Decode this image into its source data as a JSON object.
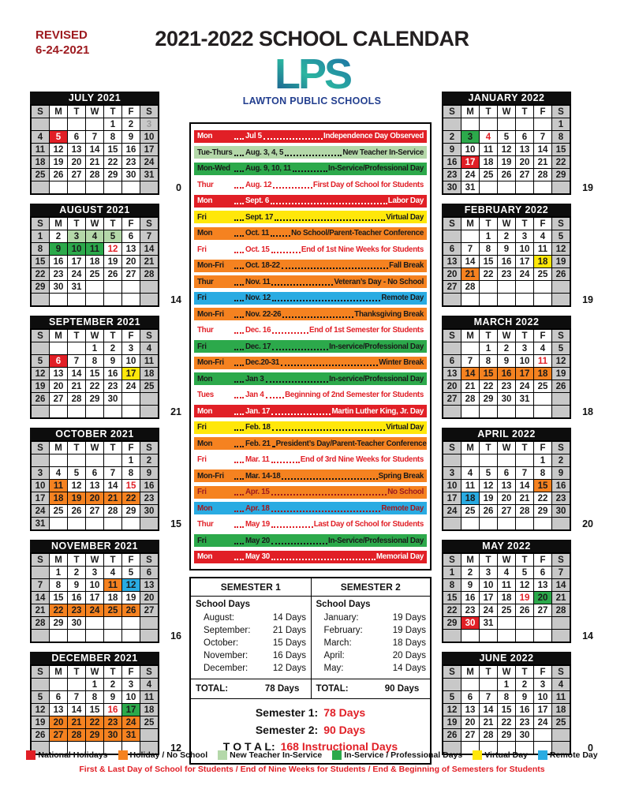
{
  "page": {
    "revised": "REVISED\n6-24-2021",
    "title": "2021-2022 SCHOOL CALENDAR",
    "logo_text": "LPS",
    "logo_subtext": "LAWTON PUBLIC SCHOOLS"
  },
  "colors": {
    "red": "#e11f26",
    "darkred": "#9e1b20",
    "orange": "#f58220",
    "ltgreen": "#b4d8a9",
    "green": "#2ca94b",
    "yellow": "#ffe70a",
    "blue": "#29abe2",
    "gray": "#c8c8c8",
    "navy": "#233f8f"
  },
  "day_headers": [
    "S",
    "M",
    "T",
    "W",
    "T",
    "F",
    "S"
  ],
  "months": [
    {
      "name": "JULY 2021",
      "count": "0",
      "marks": {
        "5": "red",
        "3": "graytext"
      },
      "weeks": [
        [
          "",
          "",
          "",
          "",
          "1",
          "2",
          "3"
        ],
        [
          "4",
          "5",
          "6",
          "7",
          "8",
          "9",
          "10"
        ],
        [
          "11",
          "12",
          "13",
          "14",
          "15",
          "16",
          "17"
        ],
        [
          "18",
          "19",
          "20",
          "21",
          "22",
          "23",
          "24"
        ],
        [
          "25",
          "26",
          "27",
          "28",
          "29",
          "30",
          "31"
        ],
        [
          "",
          "",
          "",
          "",
          "",
          "",
          ""
        ]
      ]
    },
    {
      "name": "AUGUST 2021",
      "count": "14",
      "marks": {
        "3": "ltgreen",
        "4": "ltgreen",
        "5": "ltgreen",
        "9": "green",
        "10": "green",
        "11": "green",
        "12": "redtext"
      },
      "weeks": [
        [
          "1",
          "2",
          "3",
          "4",
          "5",
          "6",
          "7"
        ],
        [
          "8",
          "9",
          "10",
          "11",
          "12",
          "13",
          "14"
        ],
        [
          "15",
          "16",
          "17",
          "18",
          "19",
          "20",
          "21"
        ],
        [
          "22",
          "23",
          "24",
          "25",
          "26",
          "27",
          "28"
        ],
        [
          "29",
          "30",
          "31",
          "",
          "",
          "",
          ""
        ],
        [
          "",
          "",
          "",
          "",
          "",
          "",
          ""
        ]
      ]
    },
    {
      "name": "SEPTEMBER 2021",
      "count": "21",
      "marks": {
        "6": "red",
        "17": "yellow"
      },
      "weeks": [
        [
          "",
          "",
          "",
          "1",
          "2",
          "3",
          "4"
        ],
        [
          "5",
          "6",
          "7",
          "8",
          "9",
          "10",
          "11"
        ],
        [
          "12",
          "13",
          "14",
          "15",
          "16",
          "17",
          "18"
        ],
        [
          "19",
          "20",
          "21",
          "22",
          "23",
          "24",
          "25"
        ],
        [
          "26",
          "27",
          "28",
          "29",
          "30",
          "",
          ""
        ],
        [
          "",
          "",
          "",
          "",
          "",
          "",
          ""
        ]
      ]
    },
    {
      "name": "OCTOBER 2021",
      "count": "15",
      "marks": {
        "11": "orange",
        "15": "redtext",
        "18": "orange",
        "19": "orange",
        "20": "orange",
        "21": "orange",
        "22": "orange"
      },
      "weeks": [
        [
          "",
          "",
          "",
          "",
          "",
          "1",
          "2"
        ],
        [
          "3",
          "4",
          "5",
          "6",
          "7",
          "8",
          "9"
        ],
        [
          "10",
          "11",
          "12",
          "13",
          "14",
          "15",
          "16"
        ],
        [
          "17",
          "18",
          "19",
          "20",
          "21",
          "22",
          "23"
        ],
        [
          "24",
          "25",
          "26",
          "27",
          "28",
          "29",
          "30"
        ],
        [
          "31",
          "",
          "",
          "",
          "",
          "",
          ""
        ]
      ]
    },
    {
      "name": "NOVEMBER 2021",
      "count": "16",
      "marks": {
        "11": "orange",
        "12": "blue",
        "22": "orange",
        "23": "orange",
        "24": "orange",
        "25": "orange",
        "26": "orange"
      },
      "weeks": [
        [
          "",
          "1",
          "2",
          "3",
          "4",
          "5",
          "6"
        ],
        [
          "7",
          "8",
          "9",
          "10",
          "11",
          "12",
          "13"
        ],
        [
          "14",
          "15",
          "16",
          "17",
          "18",
          "19",
          "20"
        ],
        [
          "21",
          "22",
          "23",
          "24",
          "25",
          "26",
          "27"
        ],
        [
          "28",
          "29",
          "30",
          "",
          "",
          "",
          ""
        ],
        [
          "",
          "",
          "",
          "",
          "",
          "",
          ""
        ]
      ]
    },
    {
      "name": "DECEMBER 2021",
      "count": "12",
      "marks": {
        "16": "redtext",
        "17": "green",
        "20": "orange",
        "21": "orange",
        "22": "orange",
        "23": "orange",
        "24": "orange",
        "27": "orange",
        "28": "orange",
        "29": "orange",
        "30": "orange",
        "31": "orange"
      },
      "weeks": [
        [
          "",
          "",
          "",
          "1",
          "2",
          "3",
          "4"
        ],
        [
          "5",
          "6",
          "7",
          "8",
          "9",
          "10",
          "11"
        ],
        [
          "12",
          "13",
          "14",
          "15",
          "16",
          "17",
          "18"
        ],
        [
          "19",
          "20",
          "21",
          "22",
          "23",
          "24",
          "25"
        ],
        [
          "26",
          "27",
          "28",
          "29",
          "30",
          "31",
          ""
        ],
        [
          "",
          "",
          "",
          "",
          "",
          "",
          ""
        ]
      ]
    },
    {
      "name": "JANUARY 2022",
      "count": "19",
      "marks": {
        "3": "green",
        "4": "redtext",
        "17": "red"
      },
      "weeks": [
        [
          "",
          "",
          "",
          "",
          "",
          "",
          "1"
        ],
        [
          "2",
          "3",
          "4",
          "5",
          "6",
          "7",
          "8"
        ],
        [
          "9",
          "10",
          "11",
          "12",
          "13",
          "14",
          "15"
        ],
        [
          "16",
          "17",
          "18",
          "19",
          "20",
          "21",
          "22"
        ],
        [
          "23",
          "24",
          "25",
          "26",
          "27",
          "28",
          "29"
        ],
        [
          "30",
          "31",
          "",
          "",
          "",
          "",
          ""
        ]
      ]
    },
    {
      "name": "FEBRUARY 2022",
      "count": "19",
      "marks": {
        "18": "yellow",
        "21": "orange"
      },
      "weeks": [
        [
          "",
          "",
          "1",
          "2",
          "3",
          "4",
          "5"
        ],
        [
          "6",
          "7",
          "8",
          "9",
          "10",
          "11",
          "12"
        ],
        [
          "13",
          "14",
          "15",
          "16",
          "17",
          "18",
          "19"
        ],
        [
          "20",
          "21",
          "22",
          "23",
          "24",
          "25",
          "26"
        ],
        [
          "27",
          "28",
          "",
          "",
          "",
          "",
          ""
        ],
        [
          "",
          "",
          "",
          "",
          "",
          "",
          ""
        ]
      ]
    },
    {
      "name": "MARCH 2022",
      "count": "18",
      "marks": {
        "11": "redtext",
        "14": "orange",
        "15": "orange",
        "16": "orange",
        "17": "orange",
        "18": "orange"
      },
      "weeks": [
        [
          "",
          "",
          "1",
          "2",
          "3",
          "4",
          "5"
        ],
        [
          "6",
          "7",
          "8",
          "9",
          "10",
          "11",
          "12"
        ],
        [
          "13",
          "14",
          "15",
          "16",
          "17",
          "18",
          "19"
        ],
        [
          "20",
          "21",
          "22",
          "23",
          "24",
          "25",
          "26"
        ],
        [
          "27",
          "28",
          "29",
          "30",
          "31",
          "",
          ""
        ],
        [
          "",
          "",
          "",
          "",
          "",
          "",
          ""
        ]
      ]
    },
    {
      "name": "APRIL 2022",
      "count": "20",
      "marks": {
        "15": "orange",
        "18": "blue"
      },
      "weeks": [
        [
          "",
          "",
          "",
          "",
          "",
          "1",
          "2"
        ],
        [
          "3",
          "4",
          "5",
          "6",
          "7",
          "8",
          "9"
        ],
        [
          "10",
          "11",
          "12",
          "13",
          "14",
          "15",
          "16"
        ],
        [
          "17",
          "18",
          "19",
          "20",
          "21",
          "22",
          "23"
        ],
        [
          "24",
          "25",
          "26",
          "27",
          "28",
          "29",
          "30"
        ],
        [
          "",
          "",
          "",
          "",
          "",
          "",
          ""
        ]
      ]
    },
    {
      "name": "MAY 2022",
      "count": "14",
      "marks": {
        "19": "redtext",
        "20": "green",
        "30": "red"
      },
      "weeks": [
        [
          "1",
          "2",
          "3",
          "4",
          "5",
          "6",
          "7"
        ],
        [
          "8",
          "9",
          "10",
          "11",
          "12",
          "13",
          "14"
        ],
        [
          "15",
          "16",
          "17",
          "18",
          "19",
          "20",
          "21"
        ],
        [
          "22",
          "23",
          "24",
          "25",
          "26",
          "27",
          "28"
        ],
        [
          "29",
          "30",
          "31",
          "",
          "",
          "",
          ""
        ],
        [
          "",
          "",
          "",
          "",
          "",
          "",
          ""
        ]
      ]
    },
    {
      "name": "JUNE 2022",
      "count": "0",
      "marks": {},
      "weeks": [
        [
          "",
          "",
          "",
          "1",
          "2",
          "3",
          "4"
        ],
        [
          "5",
          "6",
          "7",
          "8",
          "9",
          "10",
          "11"
        ],
        [
          "12",
          "13",
          "14",
          "15",
          "16",
          "17",
          "18"
        ],
        [
          "19",
          "20",
          "21",
          "22",
          "23",
          "24",
          "25"
        ],
        [
          "26",
          "27",
          "28",
          "29",
          "30",
          "",
          ""
        ],
        [
          "",
          "",
          "",
          "",
          "",
          "",
          ""
        ]
      ]
    }
  ],
  "events": [
    {
      "day": "Mon",
      "date": "Jul 5",
      "title": "Independence Day Observed",
      "style": "red"
    },
    {
      "day": "Tue-Thurs",
      "date": "Aug. 3, 4, 5",
      "title": "New Teacher In-Service",
      "style": "ltgreen"
    },
    {
      "day": "Mon-Wed",
      "date": "Aug. 9, 10, 11",
      "title": "In-Service/Professional Day",
      "style": "green"
    },
    {
      "day": "Thur",
      "date": "Aug. 12",
      "title": "First Day of School for Students",
      "style": "white"
    },
    {
      "day": "Mon",
      "date": "Sept. 6",
      "title": "Labor Day",
      "style": "red"
    },
    {
      "day": "Fri",
      "date": "Sept. 17",
      "title": "Virtual Day",
      "style": "yellow"
    },
    {
      "day": "Mon",
      "date": "Oct. 11",
      "title": "No School/Parent-Teacher Conference",
      "style": "orange"
    },
    {
      "day": "Fri",
      "date": "Oct. 15",
      "title": "End of 1st Nine Weeks for Students",
      "style": "white"
    },
    {
      "day": "Mon-Fri",
      "date": "Oct. 18-22",
      "title": "Fall Break",
      "style": "orange"
    },
    {
      "day": "Thur",
      "date": "Nov. 11",
      "title": "Veteran’s Day - No School",
      "style": "orange"
    },
    {
      "day": "Fri",
      "date": "Nov. 12",
      "title": "Remote Day",
      "style": "blue"
    },
    {
      "day": "Mon-Fri",
      "date": "Nov. 22-26",
      "title": "Thanksgiving Break",
      "style": "orange"
    },
    {
      "day": "Thur",
      "date": "Dec. 16",
      "title": "End of 1st Semester for Students",
      "style": "white"
    },
    {
      "day": "Fri",
      "date": "Dec. 17",
      "title": "In-service/Professional Day",
      "style": "green"
    },
    {
      "day": "Mon-Fri",
      "date": "Dec.20-31",
      "title": "Winter Break",
      "style": "orange"
    },
    {
      "day": "Mon",
      "date": "Jan 3",
      "title": "In-service/Professional Day",
      "style": "green"
    },
    {
      "day": "Tues",
      "date": "Jan 4",
      "title": "Beginning of 2nd Semester for Students",
      "style": "white"
    },
    {
      "day": "Mon",
      "date": "Jan. 17",
      "title": "Martin Luther King, Jr.  Day",
      "style": "red"
    },
    {
      "day": "Fri",
      "date": "Feb. 18",
      "title": "Virtual Day",
      "style": "yellow"
    },
    {
      "day": "Mon",
      "date": "Feb. 21",
      "title": "President’s Day/Parent-Teacher Conference",
      "style": "orange"
    },
    {
      "day": "Fri",
      "date": "Mar. 11",
      "title": "End of 3rd Nine Weeks for Students",
      "style": "white"
    },
    {
      "day": "Mon-Fri",
      "date": "Mar. 14-18",
      "title": "Spring Break",
      "style": "orange"
    },
    {
      "day": "Fri",
      "date": "Apr. 15",
      "title": "No School",
      "style": "orange-dark"
    },
    {
      "day": "Mon",
      "date": "Apr. 18",
      "title": "Remote Day",
      "style": "blue-dark"
    },
    {
      "day": "Thur",
      "date": "May 19",
      "title": "Last Day of School for Students",
      "style": "white"
    },
    {
      "day": "Fri",
      "date": "May 20",
      "title": "In-Service/Professional Day",
      "style": "green"
    },
    {
      "day": "Mon",
      "date": "May 30",
      "title": "Memorial Day",
      "style": "red"
    }
  ],
  "semesters": {
    "s1": {
      "title": "SEMESTER 1",
      "days_label": "School Days",
      "total_label": "TOTAL:",
      "total": "78 Days",
      "rows": [
        [
          "August:",
          "14 Days"
        ],
        [
          "September:",
          "21 Days"
        ],
        [
          "October:",
          "15 Days"
        ],
        [
          "November:",
          "16 Days"
        ],
        [
          "December:",
          "12 Days"
        ]
      ]
    },
    "s2": {
      "title": "SEMESTER 2",
      "days_label": "School Days",
      "total_label": "TOTAL:",
      "total": "90 Days",
      "rows": [
        [
          "January:",
          "19 Days"
        ],
        [
          "February:",
          "19 Days"
        ],
        [
          "March:",
          "18 Days"
        ],
        [
          "April:",
          "20 Days"
        ],
        [
          "May:",
          "14 Days"
        ]
      ]
    }
  },
  "summary": [
    [
      "Semester 1:",
      "78 Days"
    ],
    [
      "Semester 2:",
      "90 Days"
    ],
    [
      "T O T A L:",
      "168 Instructional Days"
    ]
  ],
  "legend": [
    {
      "label": "National Holidays",
      "color": "#e11f26"
    },
    {
      "label": "Holiday / No School",
      "color": "#f58220"
    },
    {
      "label": "New Teacher In-Service",
      "color": "#b4d8a9"
    },
    {
      "label": "In-Service / Professional Days",
      "color": "#2ca94b"
    },
    {
      "label": "Virtual Day",
      "color": "#ffe70a"
    },
    {
      "label": "Remote Day",
      "color": "#29abe2"
    }
  ],
  "footnote": "First & Last Day of School for Students  /  End of Nine Weeks for Students  /  End & Beginning of Semesters for Students"
}
